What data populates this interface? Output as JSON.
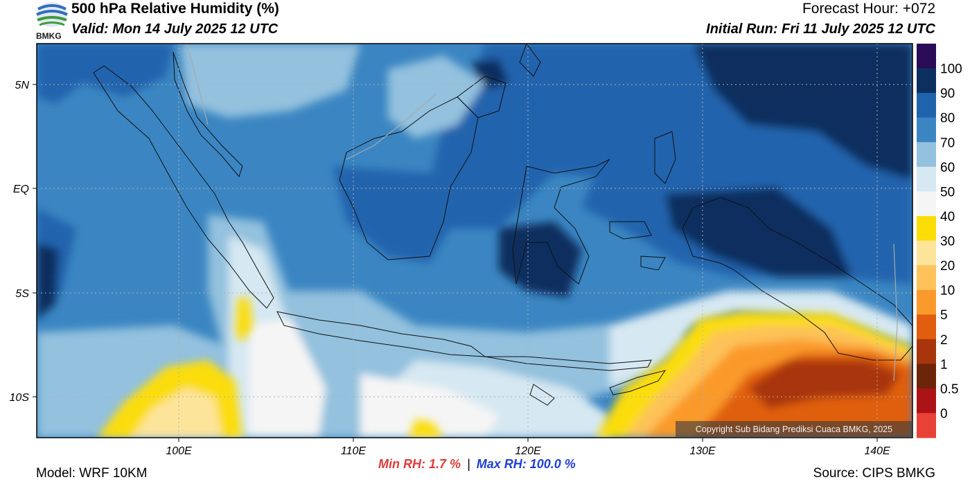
{
  "header": {
    "title": "500 hPa Relative Humidity (%)",
    "valid": "Valid: Mon 14 July 2025 12 UTC",
    "forecast_hour": "Forecast Hour: +072",
    "initial_run": "Initial Run: Fri 11 July 2025 12 UTC"
  },
  "logo": {
    "text": "BMKG"
  },
  "map": {
    "lat_labels": [
      "5N",
      "EQ",
      "5S",
      "10S"
    ],
    "lon_labels": [
      "100E",
      "110E",
      "120E",
      "130E",
      "140E"
    ],
    "copyright": "Copyright Sub Bidang Prediksi Cuaca BMKG, 2025"
  },
  "legend": {
    "labels": [
      "100",
      "90",
      "80",
      "70",
      "60",
      "50",
      "40",
      "30",
      "20",
      "10",
      "5",
      "2",
      "1",
      "0.5",
      "0"
    ],
    "colors": [
      "#2b0c57",
      "#0d2f5f",
      "#2063ad",
      "#3b86c2",
      "#93c1de",
      "#d6e8f2",
      "#f5f5f5",
      "#fbdd07",
      "#fde49b",
      "#fdc259",
      "#fa9a2c",
      "#e05e0d",
      "#a8350c",
      "#6d2509",
      "#ab1316",
      "#e84236"
    ]
  },
  "stats": {
    "min": "Min RH:   1.7 %",
    "sep": "|",
    "max": "Max RH: 100.0 %"
  },
  "footer": {
    "model": "Model: WRF 10KM",
    "source": "Source: CIPS BMKG"
  }
}
